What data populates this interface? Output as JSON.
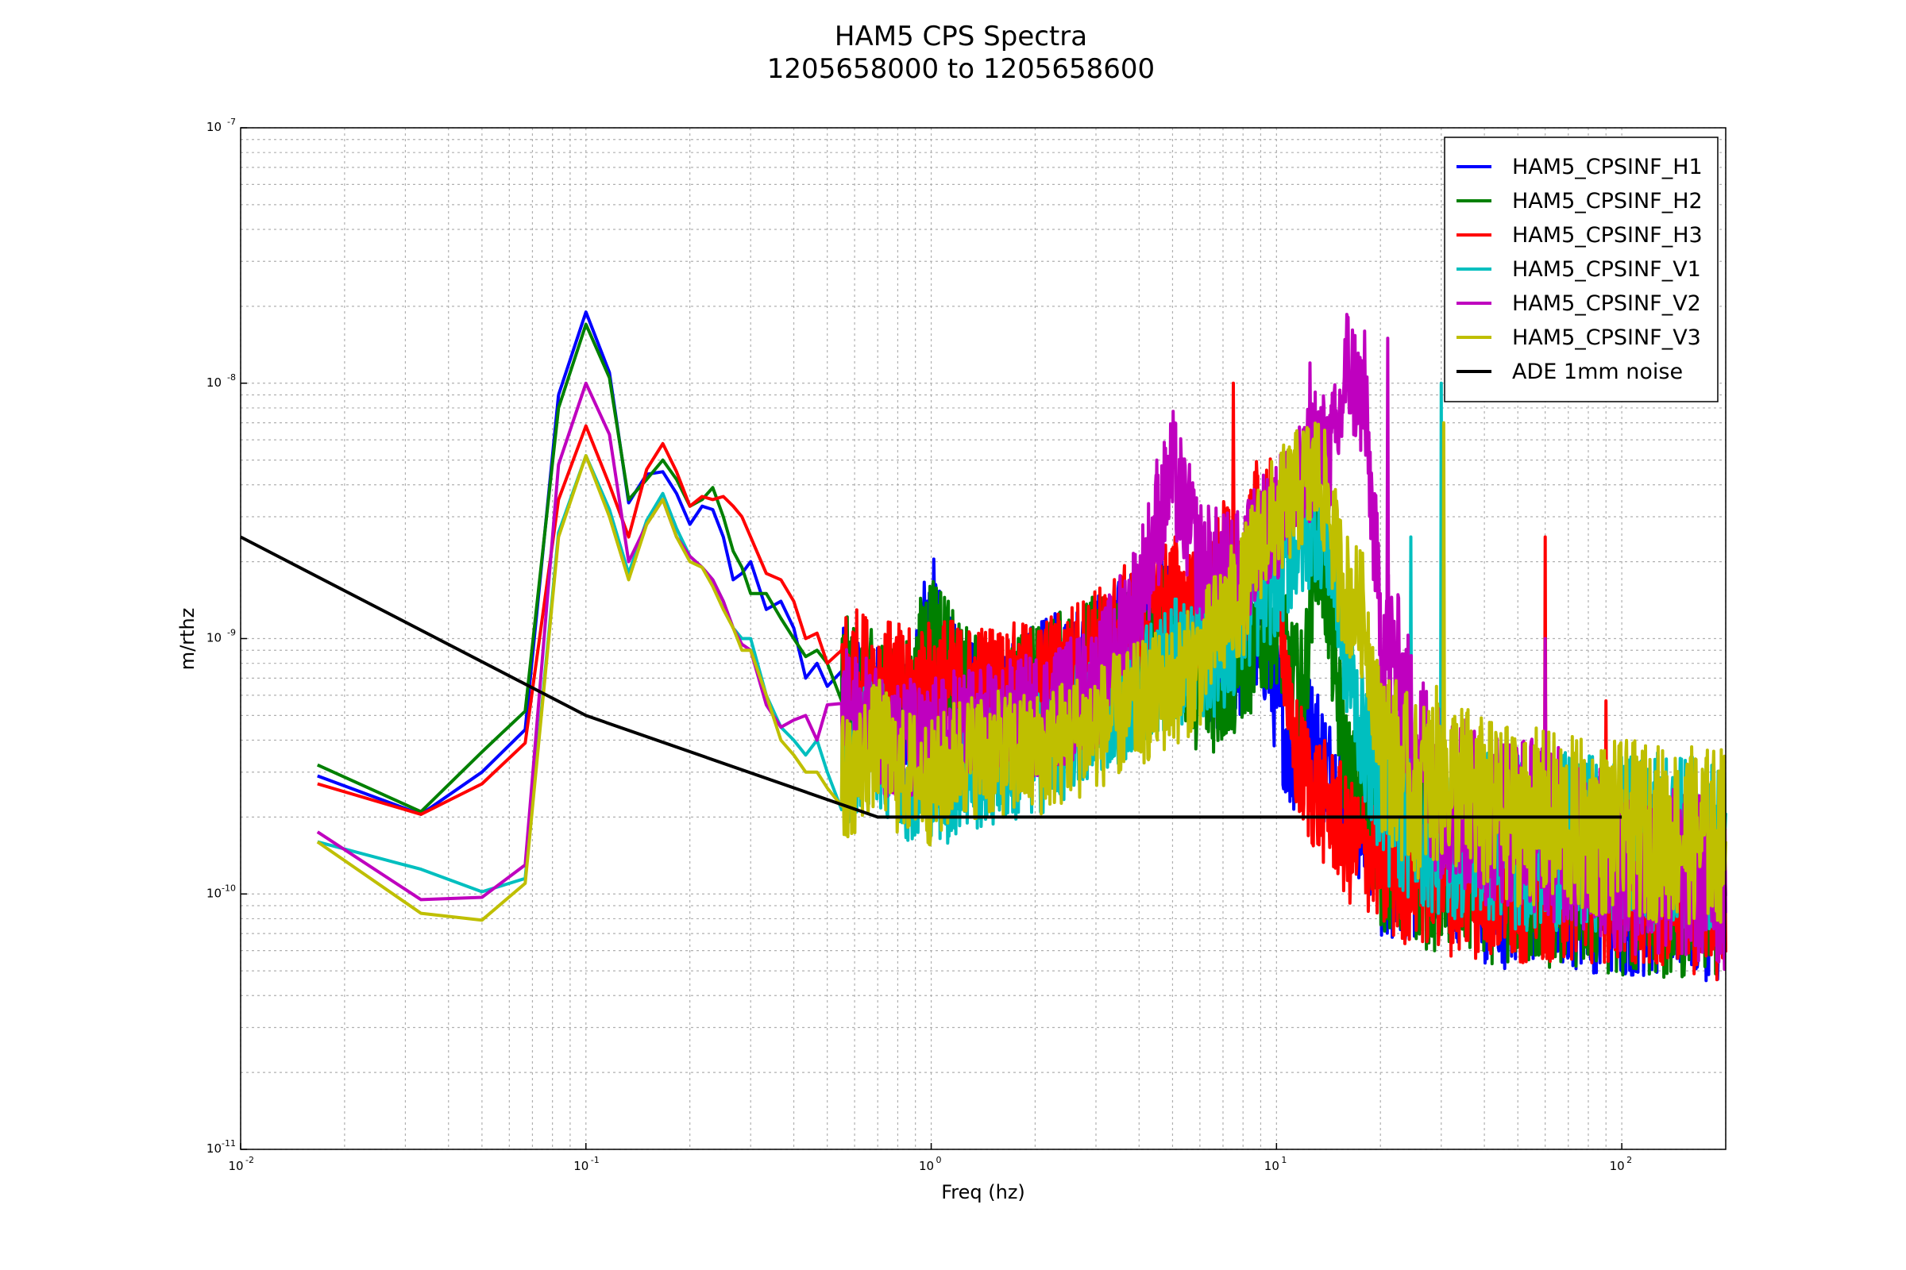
{
  "chart_data": {
    "type": "line",
    "title": "HAM5 CPS Spectra",
    "subtitle": "1205658000 to 1205658600",
    "xlabel": "Freq (hz)",
    "ylabel": "m/rthz",
    "xscale": "log",
    "yscale": "log",
    "xlim": [
      0.01,
      200
    ],
    "ylim": [
      1e-11,
      1e-07
    ],
    "x_ticks": [
      {
        "base": "10",
        "exp": "-2"
      },
      {
        "base": "10",
        "exp": "-1"
      },
      {
        "base": "10",
        "exp": "0"
      },
      {
        "base": "10",
        "exp": "1"
      },
      {
        "base": "10",
        "exp": "2"
      }
    ],
    "y_ticks": [
      {
        "base": "10",
        "exp": "-11"
      },
      {
        "base": "10",
        "exp": "-10"
      },
      {
        "base": "10",
        "exp": "-9"
      },
      {
        "base": "10",
        "exp": "-8"
      },
      {
        "base": "10",
        "exp": "-7"
      }
    ],
    "grid": true,
    "legend_position": "top-right",
    "series": [
      {
        "name": "HAM5_CPSINF_H1",
        "color": "#0000ff",
        "x": [
          0.0167,
          0.0333,
          0.05,
          0.0667,
          0.0833,
          0.1,
          0.117,
          0.133,
          0.15,
          0.167,
          0.183,
          0.2,
          0.217,
          0.233,
          0.25,
          0.267,
          0.283,
          0.3,
          0.333,
          0.367,
          0.4,
          0.433,
          0.467,
          0.5,
          0.6,
          0.7,
          0.8,
          0.9,
          0.95,
          1.0,
          1.1,
          1.2,
          1.5,
          2,
          3,
          4,
          5,
          6,
          7,
          8,
          9,
          10,
          11,
          12,
          13,
          14,
          15,
          16,
          18,
          20,
          25,
          30,
          40,
          50,
          60,
          80,
          100,
          150,
          200
        ],
        "y": [
          2.9e-10,
          2.05e-10,
          3e-10,
          4.4e-10,
          9e-09,
          1.9e-08,
          1.1e-08,
          3.4e-09,
          4.4e-09,
          4.5e-09,
          3.7e-09,
          2.8e-09,
          3.3e-09,
          3.2e-09,
          2.5e-09,
          1.7e-09,
          1.8e-09,
          2e-09,
          1.3e-09,
          1.4e-09,
          1.1e-09,
          7e-10,
          8e-10,
          6.5e-10,
          6e-10,
          5.5e-10,
          5e-10,
          5.5e-10,
          1e-09,
          1.3e-09,
          8e-10,
          6e-10,
          5.5e-10,
          6.5e-10,
          8.5e-10,
          1.1e-09,
          1.2e-09,
          9e-10,
          7.5e-10,
          8.5e-10,
          1.1e-09,
          6e-10,
          3.5e-10,
          4.5e-10,
          4e-10,
          3e-10,
          2.6e-10,
          2.3e-10,
          1.8e-10,
          1.5e-10,
          1.4e-10,
          1.6e-10,
          1.2e-10,
          1.1e-10,
          1.2e-10,
          1.1e-10,
          1.05e-10,
          1.05e-10,
          1e-10
        ]
      },
      {
        "name": "HAM5_CPSINF_H2",
        "color": "#008000",
        "x": [
          0.0167,
          0.0333,
          0.05,
          0.0667,
          0.0833,
          0.1,
          0.117,
          0.133,
          0.15,
          0.167,
          0.183,
          0.2,
          0.217,
          0.233,
          0.25,
          0.267,
          0.283,
          0.3,
          0.333,
          0.367,
          0.4,
          0.433,
          0.467,
          0.5,
          0.6,
          0.7,
          0.8,
          0.9,
          0.95,
          1.0,
          1.1,
          1.2,
          1.5,
          2,
          3,
          4,
          5,
          6,
          7,
          8,
          9,
          10,
          11,
          12,
          13,
          14,
          15,
          16,
          18,
          20,
          25,
          30,
          40,
          50,
          60,
          80,
          100,
          150,
          200
        ],
        "y": [
          3.2e-10,
          2.1e-10,
          3.6e-10,
          5.2e-10,
          8e-09,
          1.7e-08,
          1.05e-08,
          3.5e-09,
          4.2e-09,
          5e-09,
          4.2e-09,
          3.3e-09,
          3.5e-09,
          3.9e-09,
          3e-09,
          2.2e-09,
          1.9e-09,
          1.5e-09,
          1.5e-09,
          1.2e-09,
          1e-09,
          8.5e-10,
          9e-10,
          8e-10,
          6.5e-10,
          6e-10,
          5.5e-10,
          6e-10,
          1e-09,
          1.1e-09,
          9e-10,
          6.5e-10,
          5.5e-10,
          6.5e-10,
          8.5e-10,
          1e-09,
          1.1e-09,
          6e-10,
          6.5e-10,
          8e-10,
          1e-09,
          1.2e-09,
          7e-10,
          6e-10,
          2.5e-09,
          1.5e-09,
          6e-10,
          3e-10,
          2e-10,
          1.6e-10,
          1.4e-10,
          1.3e-10,
          1.2e-10,
          1.15e-10,
          1.1e-10,
          1.1e-10,
          1.05e-10,
          1.05e-10,
          1e-10
        ]
      },
      {
        "name": "HAM5_CPSINF_H3",
        "color": "#ff0000",
        "x": [
          0.0167,
          0.0333,
          0.05,
          0.0667,
          0.0833,
          0.1,
          0.117,
          0.133,
          0.15,
          0.167,
          0.183,
          0.2,
          0.217,
          0.233,
          0.25,
          0.267,
          0.283,
          0.3,
          0.333,
          0.367,
          0.4,
          0.433,
          0.467,
          0.5,
          0.6,
          0.7,
          0.8,
          0.9,
          0.95,
          1.0,
          1.1,
          1.2,
          1.5,
          2,
          3,
          4,
          5,
          6,
          7,
          8,
          9,
          10,
          11,
          12,
          13,
          14,
          15,
          16,
          18,
          20,
          25,
          30,
          40,
          50,
          60,
          80,
          100,
          150,
          200
        ],
        "y": [
          2.7e-10,
          2.05e-10,
          2.7e-10,
          3.9e-10,
          3.5e-09,
          6.8e-09,
          4e-09,
          2.5e-09,
          4.6e-09,
          5.8e-09,
          4.5e-09,
          3.3e-09,
          3.6e-09,
          3.5e-09,
          3.6e-09,
          3.3e-09,
          3e-09,
          2.5e-09,
          1.8e-09,
          1.7e-09,
          1.4e-09,
          1e-09,
          1.05e-09,
          8e-10,
          7.5e-10,
          7e-10,
          6.5e-10,
          6e-10,
          7e-10,
          6.5e-10,
          7e-10,
          6.5e-10,
          6.5e-10,
          6.5e-10,
          9e-10,
          1.2e-09,
          1.5e-09,
          1.2e-09,
          2e-09,
          1.5e-09,
          3.5e-09,
          2.5e-09,
          4e-10,
          3e-10,
          2.5e-10,
          2.2e-10,
          2e-10,
          1.6e-10,
          1.5e-10,
          1.4e-10,
          1.4e-10,
          1.3e-10,
          1.2e-10,
          1.2e-10,
          1.2e-10,
          1.2e-10,
          1.2e-10,
          1.1e-10,
          1e-10
        ]
      },
      {
        "name": "HAM5_CPSINF_V1",
        "color": "#00bfbf",
        "x": [
          0.0167,
          0.0333,
          0.05,
          0.0667,
          0.0833,
          0.1,
          0.117,
          0.133,
          0.15,
          0.167,
          0.183,
          0.2,
          0.217,
          0.233,
          0.25,
          0.267,
          0.283,
          0.3,
          0.333,
          0.367,
          0.4,
          0.433,
          0.467,
          0.5,
          0.6,
          0.7,
          0.8,
          0.9,
          0.95,
          1.0,
          1.1,
          1.2,
          1.5,
          2,
          3,
          4,
          5,
          6,
          7,
          8,
          9,
          10,
          11,
          12,
          13,
          14,
          15,
          16,
          18,
          20,
          25,
          30,
          40,
          50,
          60,
          80,
          100,
          150,
          200
        ],
        "y": [
          1.6e-10,
          1.25e-10,
          1.02e-10,
          1.15e-10,
          2.6e-09,
          5.2e-09,
          3.2e-09,
          1.8e-09,
          2.9e-09,
          3.7e-09,
          2.7e-09,
          2.1e-09,
          1.9e-09,
          1.7e-09,
          1.4e-09,
          1.1e-09,
          1e-09,
          1e-09,
          6e-10,
          4.5e-10,
          4e-10,
          3.5e-10,
          4e-10,
          3e-10,
          3.5e-10,
          4e-10,
          3e-10,
          2.8e-10,
          2.8e-10,
          3e-10,
          2.7e-10,
          3e-10,
          3.2e-10,
          3.5e-10,
          5e-10,
          6.5e-10,
          8e-10,
          8.5e-10,
          9e-10,
          1.2e-09,
          1.5e-09,
          1.8e-09,
          2.2e-09,
          2.5e-09,
          3e-09,
          2.5e-09,
          1.5e-09,
          8e-10,
          4e-10,
          2.5e-10,
          2e-10,
          1.8e-10,
          1.7e-10,
          1.6e-10,
          1.6e-10,
          1.6e-10,
          1.6e-10,
          1.6e-10,
          1.5e-10
        ]
      },
      {
        "name": "HAM5_CPSINF_V2",
        "color": "#bf00bf",
        "x": [
          0.0167,
          0.0333,
          0.05,
          0.0667,
          0.0833,
          0.1,
          0.117,
          0.133,
          0.15,
          0.167,
          0.183,
          0.2,
          0.217,
          0.233,
          0.25,
          0.267,
          0.283,
          0.3,
          0.333,
          0.367,
          0.4,
          0.433,
          0.467,
          0.5,
          0.6,
          0.7,
          0.8,
          0.9,
          0.95,
          1.0,
          1.1,
          1.2,
          1.5,
          2,
          3,
          4,
          5,
          6,
          7,
          8,
          9,
          10,
          11,
          12,
          13,
          14,
          15,
          16,
          18,
          20,
          25,
          30,
          40,
          50,
          60,
          80,
          100,
          150,
          200
        ],
        "y": [
          1.75e-10,
          9.5e-11,
          9.7e-11,
          1.3e-10,
          4.8e-09,
          1e-08,
          6.3e-09,
          2e-09,
          2.8e-09,
          3.5e-09,
          2.5e-09,
          2.1e-09,
          1.9e-09,
          1.7e-09,
          1.4e-09,
          1.1e-09,
          9.5e-10,
          9e-10,
          5.5e-10,
          4.5e-10,
          4.8e-10,
          5e-10,
          4e-10,
          5.5e-10,
          5e-10,
          4.5e-10,
          4e-10,
          4e-10,
          3.5e-10,
          4e-10,
          4e-10,
          4.5e-10,
          4.5e-10,
          5e-10,
          6.5e-10,
          1.5e-09,
          4.5e-09,
          2e-09,
          1.8e-09,
          1.8e-09,
          2.5e-09,
          3e-09,
          3.5e-09,
          4e-09,
          6e-09,
          5e-09,
          6e-09,
          1.2e-08,
          8e-09,
          1.2e-09,
          4e-10,
          2.5e-10,
          2e-10,
          2e-10,
          1.8e-10,
          1.5e-10,
          1.3e-10,
          1.2e-10,
          1.1e-10
        ]
      },
      {
        "name": "HAM5_CPSINF_V3",
        "color": "#bfbf00",
        "x": [
          0.0167,
          0.0333,
          0.05,
          0.0667,
          0.0833,
          0.1,
          0.117,
          0.133,
          0.15,
          0.167,
          0.183,
          0.2,
          0.217,
          0.233,
          0.25,
          0.267,
          0.283,
          0.3,
          0.333,
          0.367,
          0.4,
          0.433,
          0.467,
          0.5,
          0.6,
          0.7,
          0.8,
          0.9,
          0.95,
          1.0,
          1.1,
          1.2,
          1.5,
          2,
          3,
          4,
          5,
          6,
          7,
          8,
          9,
          10,
          11,
          12,
          13,
          14,
          15,
          16,
          18,
          20,
          25,
          30,
          40,
          50,
          60,
          80,
          100,
          150,
          200
        ],
        "y": [
          1.6e-10,
          8.4e-11,
          7.9e-11,
          1.1e-10,
          2.5e-09,
          5.2e-09,
          3e-09,
          1.7e-09,
          2.8e-09,
          3.5e-09,
          2.5e-09,
          2e-09,
          1.9e-09,
          1.6e-09,
          1.3e-09,
          1.1e-09,
          9e-10,
          9e-10,
          6e-10,
          4e-10,
          3.5e-10,
          3e-10,
          3e-10,
          2.6e-10,
          3e-10,
          4e-10,
          3e-10,
          3e-10,
          2.8e-10,
          2.7e-10,
          3e-10,
          3.5e-10,
          3.5e-10,
          3.5e-10,
          4.5e-10,
          5.5e-10,
          6.5e-10,
          8e-10,
          1.2e-09,
          1.5e-09,
          2.5e-09,
          3e-09,
          3.5e-09,
          4e-09,
          4.5e-09,
          3.5e-09,
          2e-09,
          1.5e-09,
          1.2e-09,
          4e-10,
          2.5e-10,
          3e-10,
          2.2e-10,
          2e-10,
          2e-10,
          1.8e-10,
          1.8e-10,
          1.7e-10,
          1.7e-10
        ]
      },
      {
        "name": "ADE 1mm noise",
        "color": "#000000",
        "x": [
          0.01,
          0.1,
          0.7,
          100
        ],
        "y": [
          2.5e-09,
          5e-10,
          2e-10,
          2e-10
        ]
      }
    ],
    "spikes": [
      {
        "series": 2,
        "x": 7.5,
        "y": 1e-08
      },
      {
        "series": 4,
        "x": 4.5,
        "y": 5e-09
      },
      {
        "series": 4,
        "x": 12.5,
        "y": 1.2e-08
      },
      {
        "series": 4,
        "x": 18.0,
        "y": 1.6e-08
      },
      {
        "series": 4,
        "x": 21.0,
        "y": 1.5e-08
      },
      {
        "series": 3,
        "x": 30.0,
        "y": 1e-08
      },
      {
        "series": 5,
        "x": 30.5,
        "y": 7e-09
      },
      {
        "series": 3,
        "x": 24.5,
        "y": 2.5e-09
      },
      {
        "series": 2,
        "x": 60.0,
        "y": 2.5e-09
      },
      {
        "series": 2,
        "x": 90.0,
        "y": 5.7e-10
      },
      {
        "series": 4,
        "x": 60.0,
        "y": 1e-09
      }
    ]
  }
}
